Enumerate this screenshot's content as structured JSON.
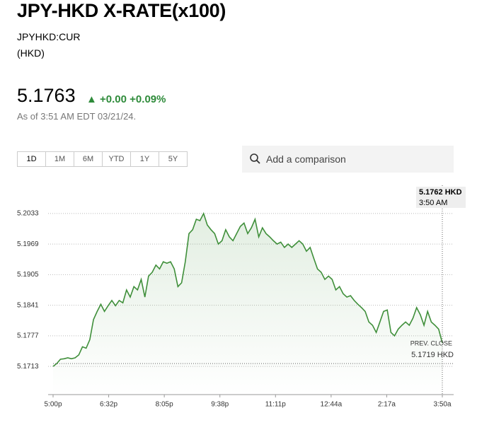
{
  "header": {
    "title": "JPY-HKD X-RATE(x100)",
    "symbol": "JPYHKD:CUR",
    "currency": "(HKD)"
  },
  "quote": {
    "price": "5.1763",
    "change": "+0.00",
    "change_pct": "+0.09%",
    "as_of": "As of 3:51 AM EDT 03/21/24."
  },
  "tabs": [
    "1D",
    "1M",
    "6M",
    "YTD",
    "1Y",
    "5Y"
  ],
  "search_placeholder": "Add a comparison",
  "chart_data": {
    "type": "line",
    "xticks": [
      "5:00p",
      "6:32p",
      "8:05p",
      "9:38p",
      "11:11p",
      "12:44a",
      "2:17a",
      "3:50a"
    ],
    "series": [
      {
        "color": "#3f8f3a",
        "values": [
          5.1713,
          5.1719,
          5.1728,
          5.1729,
          5.1731,
          5.1729,
          5.1731,
          5.1737,
          5.1754,
          5.1751,
          5.1769,
          5.1811,
          5.1828,
          5.1843,
          5.1828,
          5.184,
          5.1851,
          5.184,
          5.1851,
          5.1846,
          5.1873,
          5.1858,
          5.188,
          5.1873,
          5.1895,
          5.1858,
          5.1902,
          5.191,
          5.1925,
          5.1917,
          5.1932,
          5.1929,
          5.1932,
          5.1917,
          5.188,
          5.1888,
          5.1932,
          5.1991,
          5.1999,
          5.2021,
          5.2018,
          5.2033,
          5.2009,
          5.1999,
          5.1991,
          5.1969,
          5.1976,
          5.1999,
          5.1984,
          5.1976,
          5.1991,
          5.2006,
          5.2013,
          5.1991,
          5.2003,
          5.2021,
          5.1984,
          5.2003,
          5.1991,
          5.1984,
          5.1976,
          5.1969,
          5.1973,
          5.1962,
          5.1969,
          5.1962,
          5.1969,
          5.1976,
          5.1969,
          5.1954,
          5.1962,
          5.1939,
          5.1917,
          5.191,
          5.1895,
          5.1902,
          5.1895,
          5.1873,
          5.188,
          5.1865,
          5.1858,
          5.1861,
          5.1851,
          5.1843,
          5.1836,
          5.1828,
          5.1806,
          5.1799,
          5.1784,
          5.1806,
          5.1828,
          5.1831,
          5.1784,
          5.1777,
          5.1791,
          5.1799,
          5.1806,
          5.1799,
          5.1814,
          5.1836,
          5.1821,
          5.1799,
          5.1828,
          5.1806,
          5.1799,
          5.1791,
          5.1762
        ]
      }
    ],
    "ylim": [
      5.1654,
      5.2092
    ],
    "yticks": [
      5.1713,
      5.1777,
      5.1841,
      5.1905,
      5.1969,
      5.2033
    ],
    "grid": true,
    "last_value": 5.1762,
    "last_value_label": "5.1762 HKD",
    "last_time": "3:50 AM",
    "prev_close": 5.1719,
    "prev_close_title": "PREV. CLOSE",
    "prev_close_label": "5.1719 HKD"
  }
}
